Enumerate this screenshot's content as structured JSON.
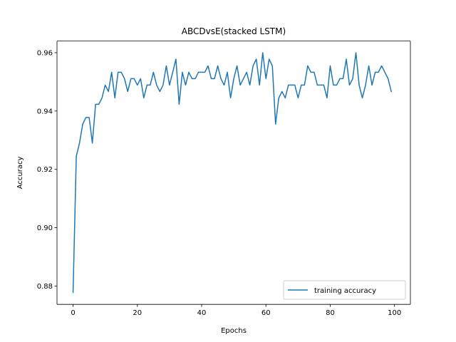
{
  "chart_data": {
    "type": "line",
    "title": "ABCDvsE(stacked LSTM)",
    "xlabel": "Epochs",
    "ylabel": "Accuracy",
    "xlim": [
      -5,
      104.95
    ],
    "ylim": [
      0.8737,
      0.964
    ],
    "xticks": [
      0,
      20,
      40,
      60,
      80,
      100
    ],
    "yticks": [
      0.88,
      0.9,
      0.92,
      0.94,
      0.96
    ],
    "ytick_labels": [
      "0.88",
      "0.90",
      "0.92",
      "0.94",
      "0.96"
    ],
    "grid": false,
    "legend_position": "lower right",
    "series": [
      {
        "name": "training accuracy",
        "color": "#1f77b4",
        "x": [
          0,
          1,
          2,
          3,
          4,
          5,
          6,
          7,
          8,
          9,
          10,
          11,
          12,
          13,
          14,
          15,
          16,
          17,
          18,
          19,
          20,
          21,
          22,
          23,
          24,
          25,
          26,
          27,
          28,
          29,
          30,
          31,
          32,
          33,
          34,
          35,
          36,
          37,
          38,
          39,
          40,
          41,
          42,
          43,
          44,
          45,
          46,
          47,
          48,
          49,
          50,
          51,
          52,
          53,
          54,
          55,
          56,
          57,
          58,
          59,
          60,
          61,
          62,
          63,
          64,
          65,
          66,
          67,
          68,
          69,
          70,
          71,
          72,
          73,
          74,
          75,
          76,
          77,
          78,
          79,
          80,
          81,
          82,
          83,
          84,
          85,
          86,
          87,
          88,
          89,
          90,
          91,
          92,
          93,
          94,
          95,
          96,
          97,
          98,
          99
        ],
        "values": [
          0.8778,
          0.9245,
          0.929,
          0.9355,
          0.9378,
          0.9378,
          0.929,
          0.9423,
          0.9423,
          0.9445,
          0.9489,
          0.9467,
          0.9533,
          0.9445,
          0.9533,
          0.9533,
          0.9511,
          0.9467,
          0.9511,
          0.9511,
          0.9489,
          0.9511,
          0.9445,
          0.9489,
          0.9489,
          0.9533,
          0.9489,
          0.9467,
          0.9489,
          0.9555,
          0.9489,
          0.9533,
          0.9578,
          0.9423,
          0.9533,
          0.9489,
          0.9533,
          0.9511,
          0.9511,
          0.9533,
          0.9533,
          0.9533,
          0.9555,
          0.9511,
          0.9511,
          0.9555,
          0.9511,
          0.9489,
          0.9533,
          0.9445,
          0.9511,
          0.9555,
          0.9489,
          0.9511,
          0.9533,
          0.9489,
          0.9555,
          0.9578,
          0.9489,
          0.96,
          0.9511,
          0.9578,
          0.9555,
          0.9355,
          0.9445,
          0.9467,
          0.9445,
          0.9489,
          0.9489,
          0.9489,
          0.9445,
          0.9489,
          0.9489,
          0.9555,
          0.9533,
          0.9533,
          0.9489,
          0.9489,
          0.9489,
          0.9445,
          0.9555,
          0.9489,
          0.9489,
          0.9511,
          0.9511,
          0.9578,
          0.9489,
          0.9511,
          0.96,
          0.9489,
          0.9445,
          0.9489,
          0.9555,
          0.9489,
          0.9533,
          0.9533,
          0.9555,
          0.9533,
          0.9511,
          0.9467
        ]
      }
    ]
  }
}
